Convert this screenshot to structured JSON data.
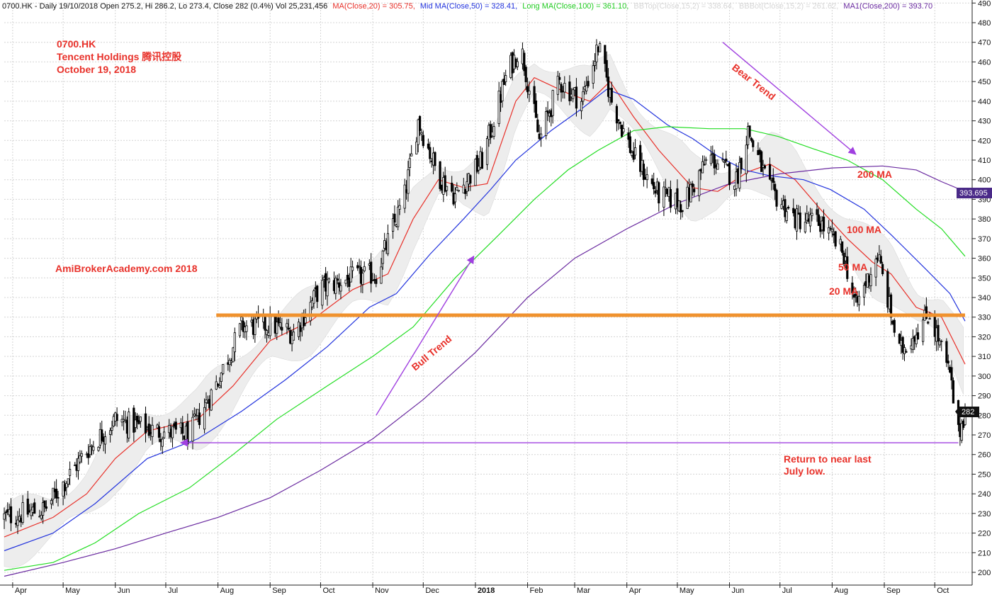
{
  "header": {
    "prefix": "0700.HK - Daily 19/10/2018 Open 275.2, Hi 286.2, Lo 273.4, Close 282 (0.4%) Vol 25,231,456",
    "ma20": "MA(Close,20) = 305.75,",
    "ma50": "Mid MA(Close,50) = 328.41,",
    "ma100": "Long MA(Close,100) = 361.10,",
    "bbtop": "BBTop(Close,15,2) = 338.64,",
    "bbbot": "BBBot(Close,15,2) = 261.62,",
    "ma200": "MA1(Close,200) = 393.70"
  },
  "annotations": {
    "ticker": "0700.HK",
    "company": "Tencent Holdings 腾讯控股",
    "date": "October 19, 2018",
    "watermark": "AmiBrokerAcademy.com  2018",
    "bull": "Bull Trend",
    "bear": "Bear Trend",
    "ma200": "200 MA",
    "ma100": "100 MA",
    "ma50": "50 MA",
    "ma20": "20 MA",
    "return_line1": "Return to near last",
    "return_line2": "July low."
  },
  "colors": {
    "ma20": "#e8312a",
    "ma50": "#2233dd",
    "ma100": "#22dd22",
    "ma200": "#6a2aa0",
    "support": "#f0922e",
    "arrow": "#a040e0",
    "annotation": "#e8312a",
    "band": "#ededed",
    "candle_up": "#ffffff",
    "candle_down": "#000000"
  },
  "price_tags": {
    "ma200": "393.695",
    "close": "282"
  },
  "chart_data": {
    "type": "candlestick",
    "title": "0700.HK Tencent Holdings",
    "yaxis": {
      "min": 200,
      "max": 490,
      "step": 10,
      "position": "right",
      "grid": true
    },
    "x_labels": [
      "Apr",
      "May",
      "Jun",
      "Jul",
      "Aug",
      "Sep",
      "Oct",
      "Nov",
      "Dec",
      "2018",
      "Feb",
      "Mar",
      "Apr",
      "May",
      "Jun",
      "Jul",
      "Aug",
      "Sep",
      "Oct"
    ],
    "x_label_months": [
      "2017-04",
      "2017-05",
      "2017-06",
      "2017-07",
      "2017-08",
      "2017-09",
      "2017-10",
      "2017-11",
      "2017-12",
      "2018-01",
      "2018-02",
      "2018-03",
      "2018-04",
      "2018-05",
      "2018-06",
      "2018-07",
      "2018-08",
      "2018-09",
      "2018-10"
    ],
    "date_range": [
      "2017-03-27",
      "2018-10-19"
    ],
    "price_path": [
      [
        "2017-03-27",
        228
      ],
      [
        "2017-04-20",
        232
      ],
      [
        "2017-05-15",
        262
      ],
      [
        "2017-06-01",
        278
      ],
      [
        "2017-06-25",
        272
      ],
      [
        "2017-07-15",
        270
      ],
      [
        "2017-07-31",
        296
      ],
      [
        "2017-08-15",
        325
      ],
      [
        "2017-09-01",
        326
      ],
      [
        "2017-09-15",
        322
      ],
      [
        "2017-10-01",
        345
      ],
      [
        "2017-10-20",
        350
      ],
      [
        "2017-11-03",
        352
      ],
      [
        "2017-11-20",
        392
      ],
      [
        "2017-11-28",
        430
      ],
      [
        "2017-12-10",
        402
      ],
      [
        "2017-12-20",
        392
      ],
      [
        "2018-01-05",
        410
      ],
      [
        "2018-01-20",
        455
      ],
      [
        "2018-01-28",
        468
      ],
      [
        "2018-02-08",
        420
      ],
      [
        "2018-02-20",
        450
      ],
      [
        "2018-03-05",
        440
      ],
      [
        "2018-03-15",
        468
      ],
      [
        "2018-03-23",
        440
      ],
      [
        "2018-04-05",
        412
      ],
      [
        "2018-04-20",
        392
      ],
      [
        "2018-05-05",
        388
      ],
      [
        "2018-05-20",
        412
      ],
      [
        "2018-06-05",
        400
      ],
      [
        "2018-06-12",
        425
      ],
      [
        "2018-06-25",
        395
      ],
      [
        "2018-07-10",
        380
      ],
      [
        "2018-07-25",
        378
      ],
      [
        "2018-08-08",
        362
      ],
      [
        "2018-08-15",
        335
      ],
      [
        "2018-08-28",
        362
      ],
      [
        "2018-09-10",
        312
      ],
      [
        "2018-09-28",
        332
      ],
      [
        "2018-10-10",
        300
      ],
      [
        "2018-10-15",
        270
      ],
      [
        "2018-10-19",
        282
      ]
    ],
    "last_bar": {
      "date": "2018-10-19",
      "open": 275.2,
      "high": 286.2,
      "low": 273.4,
      "close": 282
    },
    "series": [
      {
        "name": "MA(Close,20)",
        "last": 305.75,
        "points": [
          [
            "2017-03-27",
            218
          ],
          [
            "2017-04-25",
            228
          ],
          [
            "2017-05-15",
            240
          ],
          [
            "2017-06-01",
            258
          ],
          [
            "2017-06-20",
            272
          ],
          [
            "2017-07-20",
            278
          ],
          [
            "2017-08-10",
            295
          ],
          [
            "2017-09-01",
            318
          ],
          [
            "2017-09-25",
            328
          ],
          [
            "2017-10-20",
            344
          ],
          [
            "2017-11-10",
            352
          ],
          [
            "2017-11-25",
            380
          ],
          [
            "2017-12-10",
            400
          ],
          [
            "2017-12-25",
            396
          ],
          [
            "2018-01-08",
            398
          ],
          [
            "2018-01-25",
            440
          ],
          [
            "2018-02-05",
            452
          ],
          [
            "2018-02-25",
            444
          ],
          [
            "2018-03-10",
            440
          ],
          [
            "2018-03-22",
            450
          ],
          [
            "2018-04-05",
            432
          ],
          [
            "2018-04-20",
            415
          ],
          [
            "2018-05-10",
            396
          ],
          [
            "2018-05-25",
            394
          ],
          [
            "2018-06-12",
            404
          ],
          [
            "2018-06-25",
            408
          ],
          [
            "2018-07-10",
            400
          ],
          [
            "2018-07-25",
            385
          ],
          [
            "2018-08-10",
            370
          ],
          [
            "2018-08-25",
            358
          ],
          [
            "2018-09-05",
            352
          ],
          [
            "2018-09-20",
            335
          ],
          [
            "2018-10-05",
            330
          ],
          [
            "2018-10-19",
            306
          ]
        ]
      },
      {
        "name": "Mid MA(Close,50)",
        "last": 328.41,
        "points": [
          [
            "2017-03-27",
            211
          ],
          [
            "2017-04-25",
            220
          ],
          [
            "2017-05-20",
            235
          ],
          [
            "2017-06-20",
            258
          ],
          [
            "2017-07-20",
            268
          ],
          [
            "2017-08-15",
            282
          ],
          [
            "2017-09-10",
            298
          ],
          [
            "2017-10-05",
            315
          ],
          [
            "2017-10-30",
            335
          ],
          [
            "2017-11-15",
            342
          ],
          [
            "2017-12-05",
            362
          ],
          [
            "2017-12-25",
            380
          ],
          [
            "2018-01-10",
            395
          ],
          [
            "2018-01-25",
            410
          ],
          [
            "2018-02-15",
            425
          ],
          [
            "2018-03-05",
            436
          ],
          [
            "2018-03-20",
            446
          ],
          [
            "2018-04-05",
            441
          ],
          [
            "2018-04-25",
            428
          ],
          [
            "2018-05-10",
            421
          ],
          [
            "2018-05-25",
            412
          ],
          [
            "2018-06-10",
            405
          ],
          [
            "2018-06-25",
            402
          ],
          [
            "2018-07-15",
            400
          ],
          [
            "2018-07-31",
            395
          ],
          [
            "2018-08-20",
            385
          ],
          [
            "2018-09-05",
            372
          ],
          [
            "2018-09-25",
            355
          ],
          [
            "2018-10-10",
            342
          ],
          [
            "2018-10-19",
            328
          ]
        ]
      },
      {
        "name": "Long MA(Close,100)",
        "last": 361.1,
        "points": [
          [
            "2017-03-27",
            201
          ],
          [
            "2017-04-25",
            205
          ],
          [
            "2017-05-20",
            215
          ],
          [
            "2017-06-15",
            230
          ],
          [
            "2017-07-15",
            243
          ],
          [
            "2017-08-10",
            260
          ],
          [
            "2017-09-05",
            278
          ],
          [
            "2017-10-05",
            295
          ],
          [
            "2017-11-01",
            310
          ],
          [
            "2017-11-25",
            325
          ],
          [
            "2017-12-20",
            350
          ],
          [
            "2018-01-15",
            372
          ],
          [
            "2018-02-05",
            390
          ],
          [
            "2018-02-25",
            405
          ],
          [
            "2018-03-15",
            415
          ],
          [
            "2018-04-05",
            425
          ],
          [
            "2018-04-25",
            427
          ],
          [
            "2018-05-20",
            426
          ],
          [
            "2018-06-10",
            426
          ],
          [
            "2018-06-30",
            422
          ],
          [
            "2018-07-20",
            416
          ],
          [
            "2018-08-10",
            410
          ],
          [
            "2018-08-31",
            400
          ],
          [
            "2018-09-20",
            385
          ],
          [
            "2018-10-05",
            375
          ],
          [
            "2018-10-19",
            361
          ]
        ]
      },
      {
        "name": "MA1(Close,200)",
        "last": 393.7,
        "points": [
          [
            "2017-03-27",
            198
          ],
          [
            "2017-05-01",
            205
          ],
          [
            "2017-06-01",
            212
          ],
          [
            "2017-07-01",
            220
          ],
          [
            "2017-08-01",
            228
          ],
          [
            "2017-09-01",
            238
          ],
          [
            "2017-10-01",
            252
          ],
          [
            "2017-11-01",
            268
          ],
          [
            "2017-12-01",
            288
          ],
          [
            "2018-01-01",
            312
          ],
          [
            "2018-02-01",
            340
          ],
          [
            "2018-03-01",
            360
          ],
          [
            "2018-04-01",
            375
          ],
          [
            "2018-05-01",
            388
          ],
          [
            "2018-06-01",
            398
          ],
          [
            "2018-07-01",
            403
          ],
          [
            "2018-08-01",
            406
          ],
          [
            "2018-08-31",
            407
          ],
          [
            "2018-09-20",
            405
          ],
          [
            "2018-10-05",
            399
          ],
          [
            "2018-10-19",
            394
          ]
        ]
      }
    ],
    "bollinger_width": 12,
    "support_line": {
      "price": 331,
      "from": "2017-07-31",
      "to": "2018-10-19"
    },
    "return_arrow": {
      "price": 266,
      "from": "2018-10-15",
      "to": "2017-07-10"
    },
    "bull_arrow": {
      "from": [
        "2017-11-03",
        280
      ],
      "to": [
        "2017-12-31",
        361
      ]
    },
    "bear_arrow": {
      "from": [
        "2018-05-28",
        470
      ],
      "to": [
        "2018-08-15",
        413
      ]
    },
    "legend": "top"
  }
}
